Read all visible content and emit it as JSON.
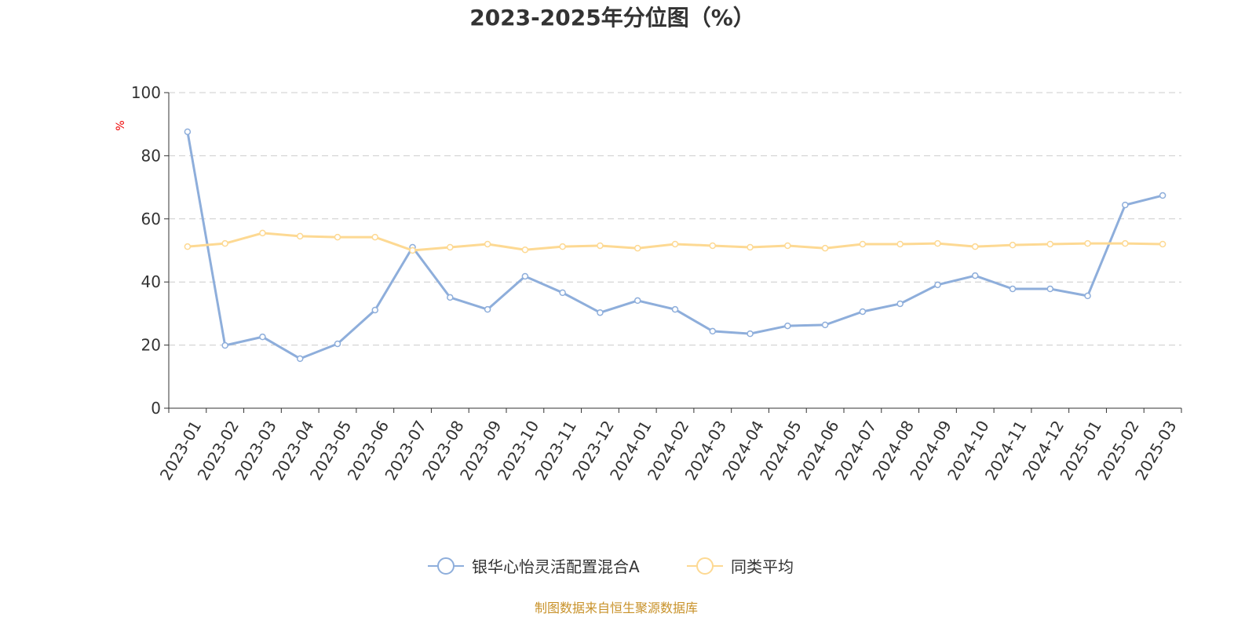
{
  "chart_data": {
    "type": "line",
    "title": "2023-2025年分位图（%）",
    "ylabel": "%",
    "xlabel": "",
    "ylim": [
      0,
      100
    ],
    "yticks": [
      0,
      20,
      40,
      60,
      80,
      100
    ],
    "grid": true,
    "legend_position": "bottom",
    "categories": [
      "2023-01",
      "2023-02",
      "2023-03",
      "2023-04",
      "2023-05",
      "2023-06",
      "2023-07",
      "2023-08",
      "2023-09",
      "2023-10",
      "2023-11",
      "2023-12",
      "2024-01",
      "2024-02",
      "2024-03",
      "2024-04",
      "2024-05",
      "2024-06",
      "2024-07",
      "2024-08",
      "2024-09",
      "2024-10",
      "2024-11",
      "2024-12",
      "2025-01",
      "2025-02",
      "2025-03"
    ],
    "series": [
      {
        "name": "银华心怡灵活配置混合A",
        "color": "#8eaedb",
        "values": [
          87.6,
          19.9,
          22.6,
          15.7,
          20.4,
          31.1,
          51.0,
          35.1,
          31.3,
          41.8,
          36.6,
          30.3,
          34.1,
          31.3,
          24.4,
          23.6,
          26.1,
          26.4,
          30.6,
          33.1,
          39.1,
          42.0,
          37.8,
          37.8,
          35.6,
          64.4,
          67.4
        ]
      },
      {
        "name": "同类平均",
        "color": "#fdd993",
        "values": [
          51.2,
          52.2,
          55.5,
          54.5,
          54.2,
          54.2,
          50.0,
          51.0,
          52.0,
          50.2,
          51.2,
          51.5,
          50.7,
          52.0,
          51.5,
          51.0,
          51.5,
          50.7,
          52.0,
          52.0,
          52.2,
          51.2,
          51.7,
          52.0,
          52.2,
          52.2,
          52.0
        ]
      }
    ]
  },
  "source": "制图数据来自恒生聚源数据库"
}
